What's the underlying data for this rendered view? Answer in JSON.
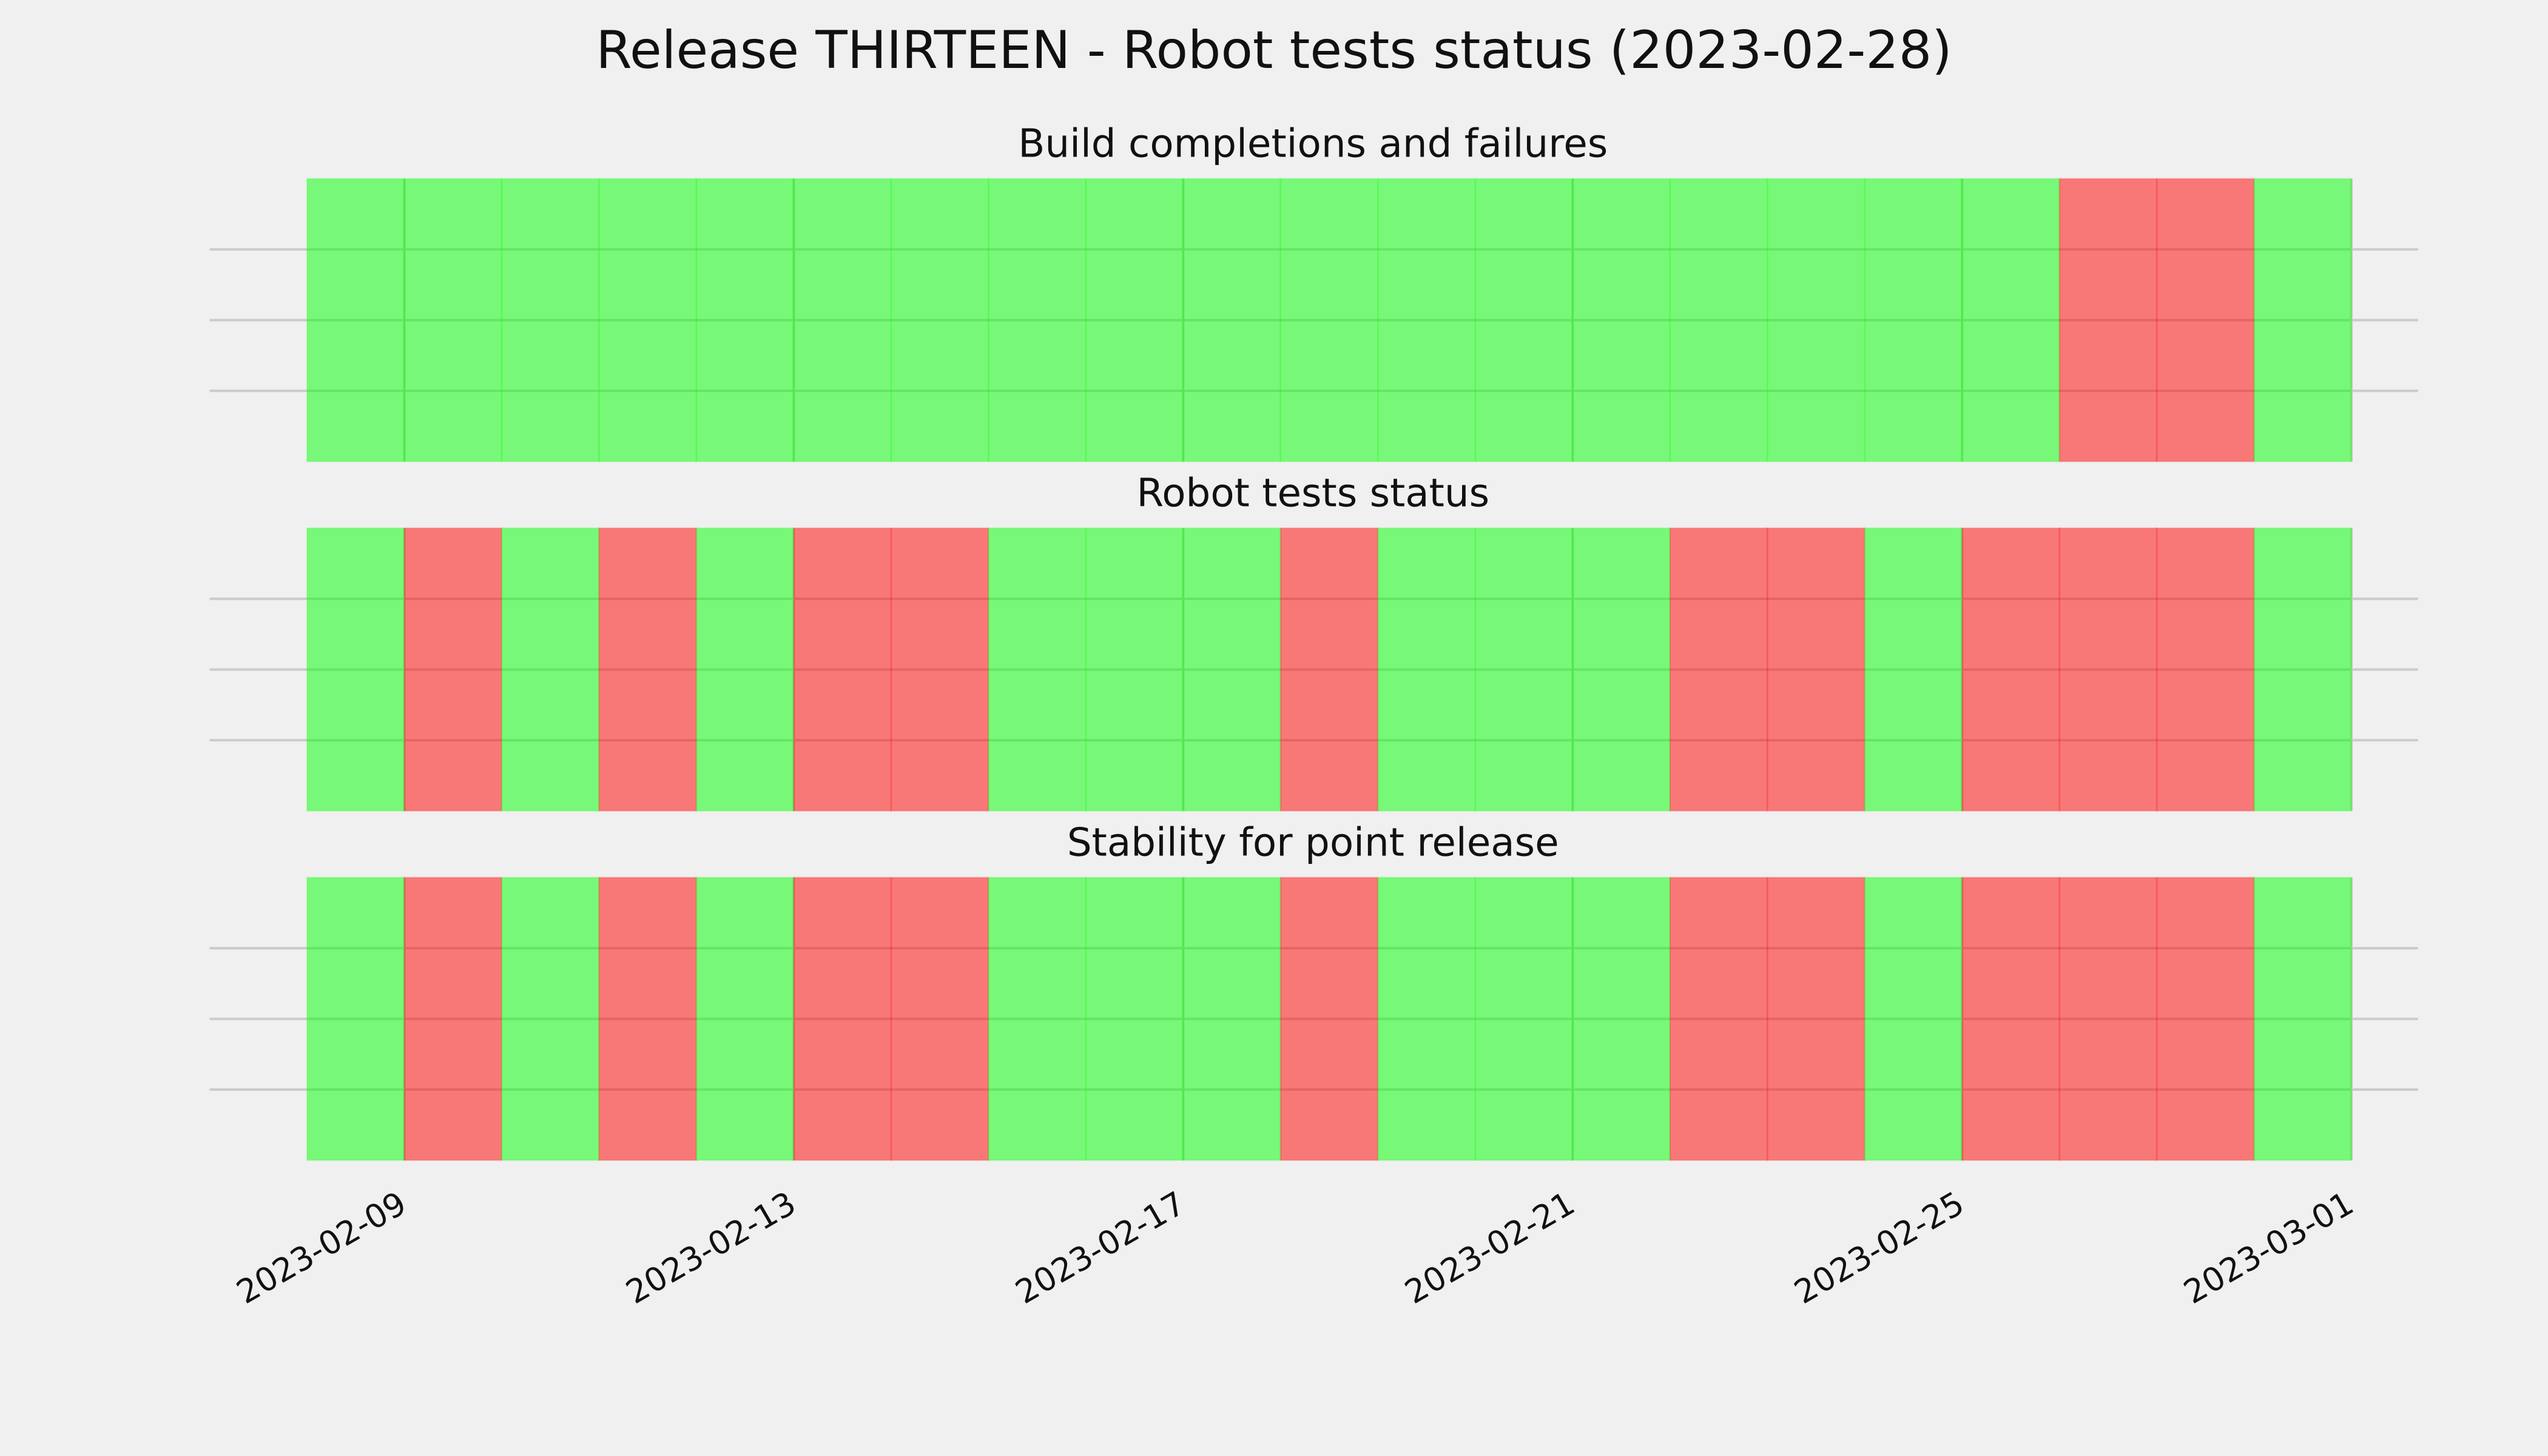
{
  "title": "Release THIRTEEN - Robot tests status (2023-02-28)",
  "chart_data": [
    {
      "type": "timeline",
      "title": "Build completions and failures",
      "x": [
        "2023-02-08",
        "2023-02-09",
        "2023-02-10",
        "2023-02-11",
        "2023-02-12",
        "2023-02-13",
        "2023-02-14",
        "2023-02-15",
        "2023-02-16",
        "2023-02-17",
        "2023-02-18",
        "2023-02-19",
        "2023-02-20",
        "2023-02-21",
        "2023-02-22",
        "2023-02-23",
        "2023-02-24",
        "2023-02-25",
        "2023-02-26",
        "2023-02-27",
        "2023-02-28"
      ],
      "values": [
        1,
        1,
        1,
        1,
        1,
        1,
        1,
        1,
        1,
        1,
        1,
        1,
        1,
        1,
        1,
        1,
        1,
        1,
        0,
        0,
        1
      ],
      "end": "2023-03-01",
      "pass_color": "#00ff00",
      "fail_color": "#ff0000",
      "alpha": 0.5,
      "xlim": [
        "2023-02-07",
        "2023-03-02"
      ],
      "xticks": [
        "2023-02-09",
        "2023-02-13",
        "2023-02-17",
        "2023-02-21",
        "2023-02-25",
        "2023-03-01"
      ],
      "ylim": [
        0,
        1
      ],
      "yticks": [
        0.25,
        0.5,
        0.75
      ],
      "grid": true
    },
    {
      "type": "timeline",
      "title": "Robot tests status",
      "x": [
        "2023-02-08",
        "2023-02-09",
        "2023-02-10",
        "2023-02-11",
        "2023-02-12",
        "2023-02-13",
        "2023-02-14",
        "2023-02-15",
        "2023-02-16",
        "2023-02-17",
        "2023-02-18",
        "2023-02-19",
        "2023-02-20",
        "2023-02-21",
        "2023-02-22",
        "2023-02-23",
        "2023-02-24",
        "2023-02-25",
        "2023-02-26",
        "2023-02-27",
        "2023-02-28"
      ],
      "values": [
        1,
        0,
        1,
        0,
        1,
        0,
        0,
        1,
        1,
        1,
        0,
        1,
        1,
        1,
        0,
        0,
        1,
        0,
        0,
        0,
        1
      ],
      "end": "2023-03-01",
      "pass_color": "#00ff00",
      "fail_color": "#ff0000",
      "alpha": 0.5,
      "xlim": [
        "2023-02-07",
        "2023-03-02"
      ],
      "xticks": [
        "2023-02-09",
        "2023-02-13",
        "2023-02-17",
        "2023-02-21",
        "2023-02-25",
        "2023-03-01"
      ],
      "ylim": [
        0,
        1
      ],
      "yticks": [
        0.25,
        0.5,
        0.75
      ],
      "grid": true
    },
    {
      "type": "timeline",
      "title": "Stability for point release",
      "x": [
        "2023-02-08",
        "2023-02-09",
        "2023-02-10",
        "2023-02-11",
        "2023-02-12",
        "2023-02-13",
        "2023-02-14",
        "2023-02-15",
        "2023-02-16",
        "2023-02-17",
        "2023-02-18",
        "2023-02-19",
        "2023-02-20",
        "2023-02-21",
        "2023-02-22",
        "2023-02-23",
        "2023-02-24",
        "2023-02-25",
        "2023-02-26",
        "2023-02-27",
        "2023-02-28"
      ],
      "values": [
        1,
        0,
        1,
        0,
        1,
        0,
        0,
        1,
        1,
        1,
        0,
        1,
        1,
        1,
        0,
        0,
        1,
        0,
        0,
        0,
        1
      ],
      "end": "2023-03-01",
      "pass_color": "#00ff00",
      "fail_color": "#ff0000",
      "alpha": 0.5,
      "xlim": [
        "2023-02-07",
        "2023-03-02"
      ],
      "xticks": [
        "2023-02-09",
        "2023-02-13",
        "2023-02-17",
        "2023-02-21",
        "2023-02-25",
        "2023-03-01"
      ],
      "ylim": [
        0,
        1
      ],
      "yticks": [
        0.25,
        0.5,
        0.75
      ],
      "grid": true,
      "show_xtick_labels": true
    }
  ]
}
